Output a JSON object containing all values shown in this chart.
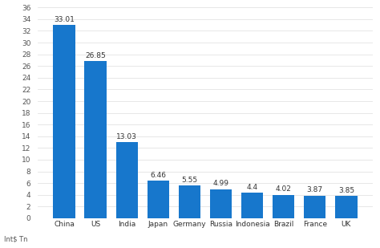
{
  "categories": [
    "China",
    "US",
    "India",
    "Japan",
    "Germany",
    "Russia",
    "Indonesia",
    "Brazil",
    "France",
    "UK"
  ],
  "values": [
    33.01,
    26.85,
    13.03,
    6.46,
    5.55,
    4.99,
    4.4,
    4.02,
    3.87,
    3.85
  ],
  "bar_color": "#1777CC",
  "ylim": [
    0,
    36
  ],
  "yticks": [
    0,
    2,
    4,
    6,
    8,
    10,
    12,
    14,
    16,
    18,
    20,
    22,
    24,
    26,
    28,
    30,
    32,
    34,
    36
  ],
  "ylabel": "Int$ Tn",
  "background_color": "#ffffff",
  "label_fontsize": 6.5,
  "tick_fontsize": 6.5,
  "ylabel_fontsize": 6.0,
  "bar_width": 0.7
}
